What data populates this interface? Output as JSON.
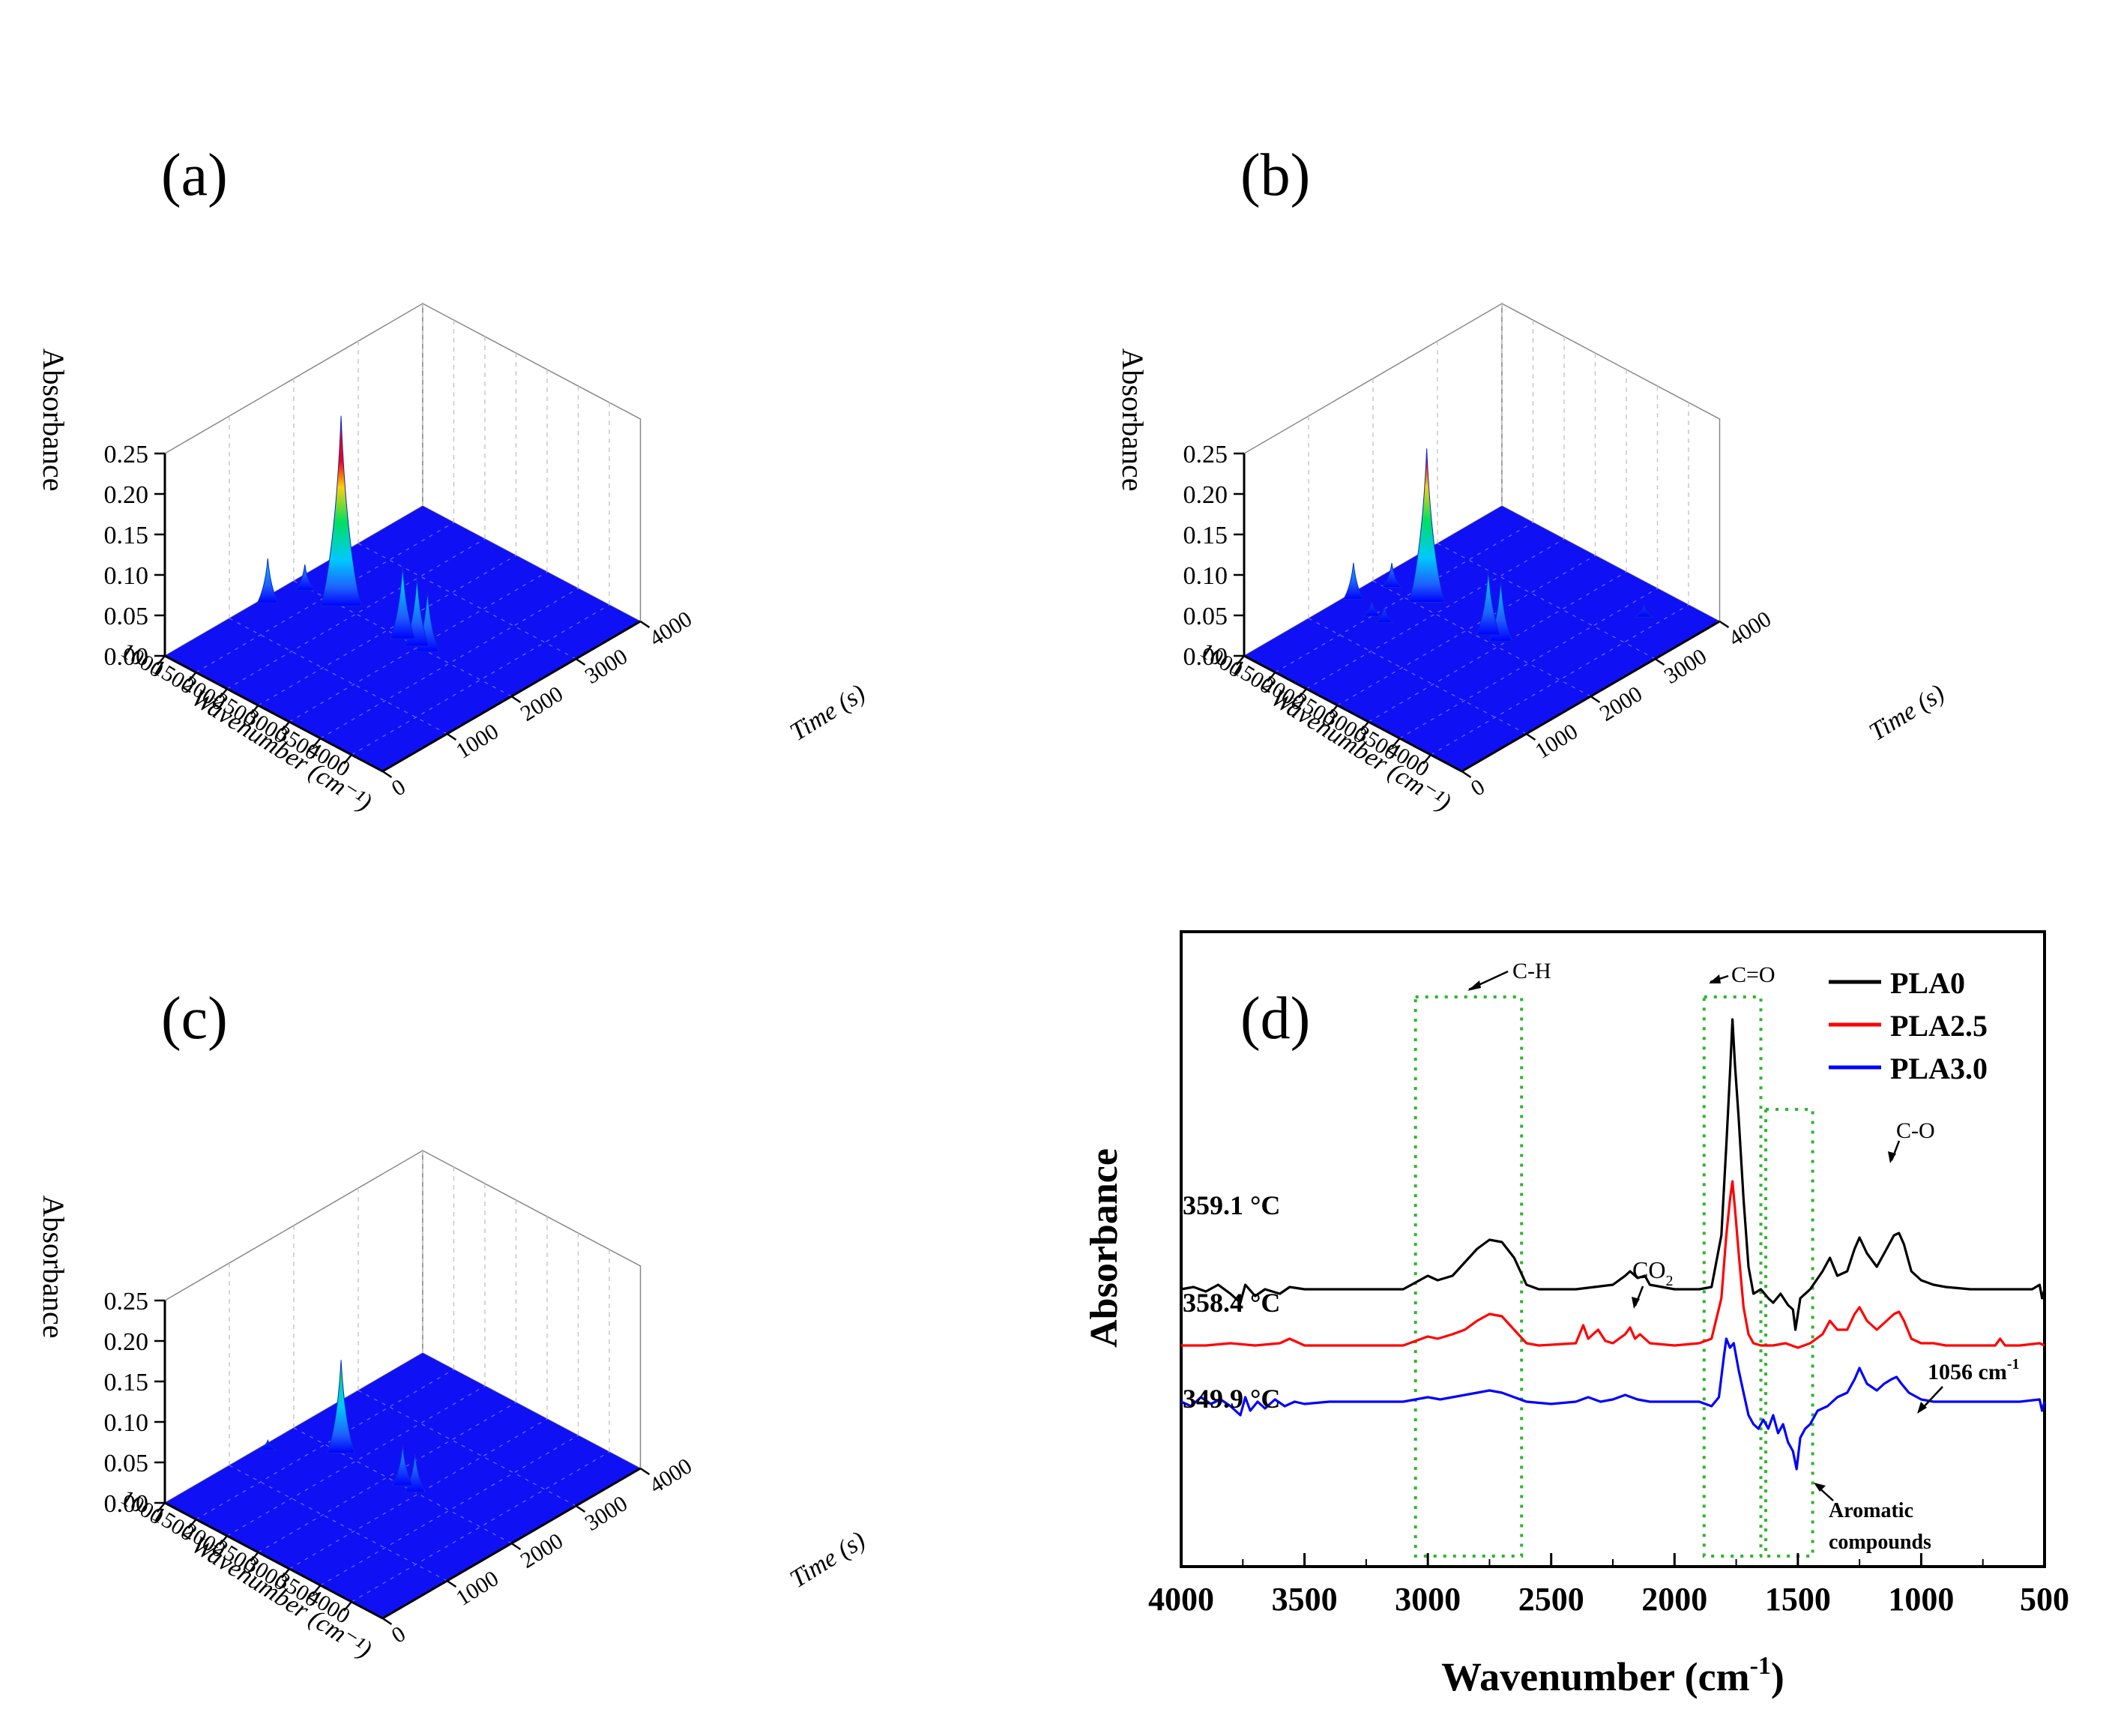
{
  "figure": {
    "panels": [
      {
        "id": "a",
        "panel_label": "(a)",
        "zlabel": "Absorbance",
        "xlabel": "Wavenumber (cm⁻¹)",
        "ylabel": "Time (s)",
        "z_ticks": [
          "0.00",
          "0.05",
          "0.10",
          "0.15",
          "0.20",
          "0.25"
        ],
        "x_ticks": [
          "1000",
          "1500",
          "2000",
          "2500",
          "3000",
          "3500",
          "4000"
        ],
        "y_ticks": [
          "0",
          "1000",
          "2000",
          "3000",
          "4000"
        ],
        "peaks": [
          {
            "wavenumber": 1760,
            "time": 2000,
            "height": 0.235
          },
          {
            "wavenumber": 2750,
            "time": 2000,
            "height": 0.09
          },
          {
            "wavenumber": 2980,
            "time": 2000,
            "height": 0.085
          },
          {
            "wavenumber": 3150,
            "time": 2000,
            "height": 0.075
          },
          {
            "wavenumber": 1230,
            "time": 1950,
            "height": 0.032
          },
          {
            "wavenumber": 1100,
            "time": 1500,
            "height": 0.055
          },
          {
            "wavenumber": 1050,
            "time": 2700,
            "height": 0.035
          }
        ]
      },
      {
        "id": "b",
        "panel_label": "(b)",
        "zlabel": "Absorbance",
        "xlabel": "Wavenumber (cm⁻¹)",
        "ylabel": "Time (s)",
        "z_ticks": [
          "0.00",
          "0.05",
          "0.10",
          "0.15",
          "0.20",
          "0.25"
        ],
        "x_ticks": [
          "1000",
          "1500",
          "2000",
          "2500",
          "3000",
          "3500",
          "4000"
        ],
        "y_ticks": [
          "0",
          "1000",
          "2000",
          "3000",
          "4000"
        ],
        "peaks": [
          {
            "wavenumber": 1760,
            "time": 2100,
            "height": 0.19
          },
          {
            "wavenumber": 2750,
            "time": 2100,
            "height": 0.08
          },
          {
            "wavenumber": 2950,
            "time": 2100,
            "height": 0.075
          },
          {
            "wavenumber": 1250,
            "time": 2050,
            "height": 0.03
          },
          {
            "wavenumber": 1100,
            "time": 1600,
            "height": 0.045
          },
          {
            "wavenumber": 1700,
            "time": 1500,
            "height": 0.02
          },
          {
            "wavenumber": 1500,
            "time": 1500,
            "height": 0.018
          },
          {
            "wavenumber": 3800,
            "time": 3500,
            "height": 0.015
          }
        ]
      },
      {
        "id": "c",
        "panel_label": "(c)",
        "zlabel": "Absorbance",
        "xlabel": "Wavenumber (cm⁻¹)",
        "ylabel": "Time (s)",
        "z_ticks": [
          "0.00",
          "0.05",
          "0.10",
          "0.15",
          "0.20",
          "0.25"
        ],
        "x_ticks": [
          "1000",
          "1500",
          "2000",
          "2500",
          "3000",
          "3500",
          "4000"
        ],
        "y_ticks": [
          "0",
          "1000",
          "2000",
          "3000",
          "4000"
        ],
        "peaks": [
          {
            "wavenumber": 1760,
            "time": 2000,
            "height": 0.115
          },
          {
            "wavenumber": 2750,
            "time": 2000,
            "height": 0.05
          },
          {
            "wavenumber": 2950,
            "time": 2000,
            "height": 0.048
          },
          {
            "wavenumber": 1100,
            "time": 1500,
            "height": 0.012
          }
        ]
      }
    ]
  },
  "chart_data": {
    "type": "line",
    "panel_label": "(d)",
    "xlabel_text": "Wavenumber (cm",
    "xlabel_sup": "-1",
    "xlabel_close": ")",
    "ylabel": "Absorbance",
    "xlim": [
      4000,
      500
    ],
    "x_reversed": true,
    "x_ticks": [
      4000,
      3500,
      3000,
      2500,
      2000,
      1500,
      1000,
      500
    ],
    "series": [
      {
        "name": "PLA0",
        "color": "#000000",
        "temperature_label": "359.1 °C",
        "points": [
          [
            4000,
            0.4
          ],
          [
            3950,
            0.405
          ],
          [
            3900,
            0.395
          ],
          [
            3850,
            0.41
          ],
          [
            3800,
            0.39
          ],
          [
            3760,
            0.37
          ],
          [
            3740,
            0.41
          ],
          [
            3700,
            0.385
          ],
          [
            3660,
            0.4
          ],
          [
            3600,
            0.39
          ],
          [
            3560,
            0.405
          ],
          [
            3500,
            0.4
          ],
          [
            3450,
            0.4
          ],
          [
            3300,
            0.4
          ],
          [
            3100,
            0.4
          ],
          [
            3050,
            0.415
          ],
          [
            3000,
            0.43
          ],
          [
            2960,
            0.42
          ],
          [
            2900,
            0.43
          ],
          [
            2850,
            0.46
          ],
          [
            2800,
            0.49
          ],
          [
            2750,
            0.51
          ],
          [
            2700,
            0.505
          ],
          [
            2650,
            0.47
          ],
          [
            2600,
            0.41
          ],
          [
            2550,
            0.4
          ],
          [
            2400,
            0.4
          ],
          [
            2250,
            0.41
          ],
          [
            2200,
            0.43
          ],
          [
            2180,
            0.44
          ],
          [
            2150,
            0.425
          ],
          [
            2120,
            0.43
          ],
          [
            2100,
            0.41
          ],
          [
            2000,
            0.4
          ],
          [
            1900,
            0.4
          ],
          [
            1850,
            0.405
          ],
          [
            1810,
            0.52
          ],
          [
            1790,
            0.72
          ],
          [
            1775,
            0.88
          ],
          [
            1765,
            1.0
          ],
          [
            1755,
            0.9
          ],
          [
            1740,
            0.78
          ],
          [
            1720,
            0.6
          ],
          [
            1700,
            0.45
          ],
          [
            1680,
            0.39
          ],
          [
            1650,
            0.4
          ],
          [
            1620,
            0.38
          ],
          [
            1600,
            0.37
          ],
          [
            1570,
            0.39
          ],
          [
            1540,
            0.365
          ],
          [
            1520,
            0.355
          ],
          [
            1510,
            0.31
          ],
          [
            1490,
            0.38
          ],
          [
            1450,
            0.4
          ],
          [
            1400,
            0.44
          ],
          [
            1370,
            0.47
          ],
          [
            1340,
            0.43
          ],
          [
            1300,
            0.44
          ],
          [
            1270,
            0.49
          ],
          [
            1250,
            0.515
          ],
          [
            1220,
            0.48
          ],
          [
            1180,
            0.45
          ],
          [
            1150,
            0.48
          ],
          [
            1110,
            0.52
          ],
          [
            1090,
            0.525
          ],
          [
            1070,
            0.5
          ],
          [
            1040,
            0.44
          ],
          [
            1000,
            0.42
          ],
          [
            950,
            0.41
          ],
          [
            900,
            0.405
          ],
          [
            800,
            0.4
          ],
          [
            700,
            0.4
          ],
          [
            600,
            0.4
          ],
          [
            550,
            0.4
          ],
          [
            520,
            0.41
          ],
          [
            510,
            0.38
          ],
          [
            500,
            0.4
          ]
        ]
      },
      {
        "name": "PLA2.5",
        "color": "#ff0000",
        "temperature_label": "358.4 °C",
        "points": [
          [
            4000,
            0.275
          ],
          [
            3900,
            0.275
          ],
          [
            3800,
            0.28
          ],
          [
            3700,
            0.275
          ],
          [
            3600,
            0.28
          ],
          [
            3560,
            0.29
          ],
          [
            3500,
            0.275
          ],
          [
            3300,
            0.275
          ],
          [
            3100,
            0.275
          ],
          [
            3050,
            0.285
          ],
          [
            3000,
            0.295
          ],
          [
            2960,
            0.29
          ],
          [
            2900,
            0.3
          ],
          [
            2850,
            0.31
          ],
          [
            2800,
            0.33
          ],
          [
            2750,
            0.345
          ],
          [
            2700,
            0.34
          ],
          [
            2650,
            0.31
          ],
          [
            2600,
            0.28
          ],
          [
            2550,
            0.275
          ],
          [
            2400,
            0.28
          ],
          [
            2370,
            0.32
          ],
          [
            2350,
            0.29
          ],
          [
            2310,
            0.31
          ],
          [
            2280,
            0.285
          ],
          [
            2250,
            0.28
          ],
          [
            2200,
            0.3
          ],
          [
            2180,
            0.315
          ],
          [
            2160,
            0.29
          ],
          [
            2140,
            0.3
          ],
          [
            2100,
            0.28
          ],
          [
            2000,
            0.275
          ],
          [
            1900,
            0.28
          ],
          [
            1850,
            0.29
          ],
          [
            1810,
            0.38
          ],
          [
            1790,
            0.52
          ],
          [
            1775,
            0.6
          ],
          [
            1765,
            0.64
          ],
          [
            1755,
            0.58
          ],
          [
            1740,
            0.48
          ],
          [
            1720,
            0.36
          ],
          [
            1700,
            0.3
          ],
          [
            1680,
            0.28
          ],
          [
            1650,
            0.275
          ],
          [
            1600,
            0.275
          ],
          [
            1550,
            0.28
          ],
          [
            1500,
            0.27
          ],
          [
            1450,
            0.28
          ],
          [
            1400,
            0.3
          ],
          [
            1370,
            0.33
          ],
          [
            1340,
            0.31
          ],
          [
            1300,
            0.31
          ],
          [
            1270,
            0.345
          ],
          [
            1250,
            0.36
          ],
          [
            1220,
            0.33
          ],
          [
            1180,
            0.31
          ],
          [
            1150,
            0.325
          ],
          [
            1110,
            0.345
          ],
          [
            1090,
            0.35
          ],
          [
            1070,
            0.33
          ],
          [
            1040,
            0.29
          ],
          [
            1000,
            0.28
          ],
          [
            950,
            0.28
          ],
          [
            900,
            0.275
          ],
          [
            800,
            0.275
          ],
          [
            700,
            0.275
          ],
          [
            680,
            0.29
          ],
          [
            660,
            0.275
          ],
          [
            600,
            0.275
          ],
          [
            520,
            0.28
          ],
          [
            500,
            0.275
          ]
        ]
      },
      {
        "name": "PLA3.0",
        "color": "#0000ff",
        "temperature_label": "349.9 °C",
        "points": [
          [
            4000,
            0.15
          ],
          [
            3960,
            0.14
          ],
          [
            3920,
            0.16
          ],
          [
            3880,
            0.145
          ],
          [
            3840,
            0.155
          ],
          [
            3800,
            0.14
          ],
          [
            3760,
            0.12
          ],
          [
            3740,
            0.16
          ],
          [
            3720,
            0.13
          ],
          [
            3690,
            0.15
          ],
          [
            3660,
            0.135
          ],
          [
            3620,
            0.155
          ],
          [
            3580,
            0.14
          ],
          [
            3540,
            0.15
          ],
          [
            3500,
            0.145
          ],
          [
            3400,
            0.15
          ],
          [
            3200,
            0.15
          ],
          [
            3100,
            0.15
          ],
          [
            3050,
            0.155
          ],
          [
            3000,
            0.16
          ],
          [
            2950,
            0.155
          ],
          [
            2900,
            0.16
          ],
          [
            2850,
            0.165
          ],
          [
            2800,
            0.17
          ],
          [
            2750,
            0.175
          ],
          [
            2700,
            0.17
          ],
          [
            2650,
            0.16
          ],
          [
            2600,
            0.15
          ],
          [
            2500,
            0.145
          ],
          [
            2400,
            0.15
          ],
          [
            2350,
            0.16
          ],
          [
            2300,
            0.15
          ],
          [
            2250,
            0.155
          ],
          [
            2200,
            0.165
          ],
          [
            2150,
            0.155
          ],
          [
            2100,
            0.15
          ],
          [
            2000,
            0.15
          ],
          [
            1900,
            0.15
          ],
          [
            1850,
            0.14
          ],
          [
            1820,
            0.16
          ],
          [
            1800,
            0.25
          ],
          [
            1790,
            0.29
          ],
          [
            1775,
            0.27
          ],
          [
            1760,
            0.28
          ],
          [
            1740,
            0.22
          ],
          [
            1720,
            0.17
          ],
          [
            1700,
            0.12
          ],
          [
            1680,
            0.1
          ],
          [
            1660,
            0.09
          ],
          [
            1640,
            0.11
          ],
          [
            1620,
            0.09
          ],
          [
            1600,
            0.12
          ],
          [
            1580,
            0.08
          ],
          [
            1560,
            0.1
          ],
          [
            1540,
            0.06
          ],
          [
            1520,
            0.04
          ],
          [
            1505,
            0.0
          ],
          [
            1490,
            0.07
          ],
          [
            1470,
            0.09
          ],
          [
            1450,
            0.1
          ],
          [
            1420,
            0.13
          ],
          [
            1380,
            0.14
          ],
          [
            1340,
            0.16
          ],
          [
            1300,
            0.17
          ],
          [
            1270,
            0.2
          ],
          [
            1250,
            0.225
          ],
          [
            1220,
            0.19
          ],
          [
            1180,
            0.175
          ],
          [
            1150,
            0.19
          ],
          [
            1120,
            0.2
          ],
          [
            1100,
            0.205
          ],
          [
            1080,
            0.19
          ],
          [
            1050,
            0.17
          ],
          [
            1000,
            0.155
          ],
          [
            950,
            0.15
          ],
          [
            900,
            0.15
          ],
          [
            800,
            0.15
          ],
          [
            700,
            0.15
          ],
          [
            600,
            0.15
          ],
          [
            520,
            0.155
          ],
          [
            510,
            0.13
          ],
          [
            500,
            0.15
          ]
        ]
      }
    ],
    "legend": [
      "PLA0",
      "PLA2.5",
      "PLA3.0"
    ],
    "legend_position": "top-right",
    "annotations": {
      "ch": "C-H",
      "co_double": "C=O",
      "co2_text": "CO",
      "co2_sub": "2",
      "c_o": "C-O",
      "wn_1056_text": "1056 cm",
      "wn_1056_sup": "-1",
      "aromatic_line1": "Aromatic",
      "aromatic_line2": "compounds"
    },
    "highlight_boxes_wavenumber": [
      [
        3050,
        2620
      ],
      [
        1880,
        1650
      ],
      [
        1630,
        1440
      ]
    ]
  }
}
